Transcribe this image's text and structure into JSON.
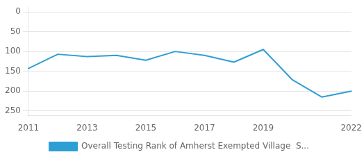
{
  "chart_data": {
    "type": "line",
    "categories": [
      "2011",
      null,
      "2013",
      null,
      "2015",
      null,
      "2017",
      null,
      "2019",
      null,
      null,
      "2022"
    ],
    "series": [
      {
        "name": "Overall Testing Rank of Amherst Exempted Village  S...",
        "color": "#2e9fd4",
        "values": [
          143,
          107,
          113,
          110,
          122,
          100,
          110,
          127,
          95,
          172,
          215,
          200
        ]
      }
    ],
    "ylim": [
      262,
      -12
    ],
    "yticks": [
      0,
      50,
      100,
      150,
      200,
      250
    ],
    "grid": "y",
    "legend": "bottom"
  }
}
